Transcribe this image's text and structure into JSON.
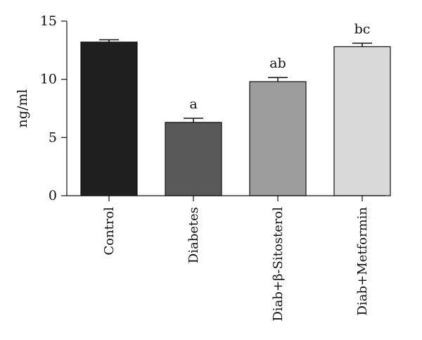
{
  "chart_data": {
    "type": "bar",
    "categories": [
      "Control",
      "Diabetes",
      "Diab+β-Sitosterol",
      "Diab+Metformin"
    ],
    "values": [
      13.2,
      6.3,
      9.8,
      12.8
    ],
    "errors": [
      0.2,
      0.35,
      0.35,
      0.3
    ],
    "significance_labels": [
      "",
      "a",
      "ab",
      "bc"
    ],
    "bar_colors": [
      "#1f1f1f",
      "#595959",
      "#9d9d9d",
      "#d9d9d9"
    ],
    "ylabel": "ng/ml",
    "ylim": [
      0,
      15
    ],
    "yticks": [
      0,
      5,
      10,
      15
    ],
    "grid": false,
    "legend": "none"
  }
}
